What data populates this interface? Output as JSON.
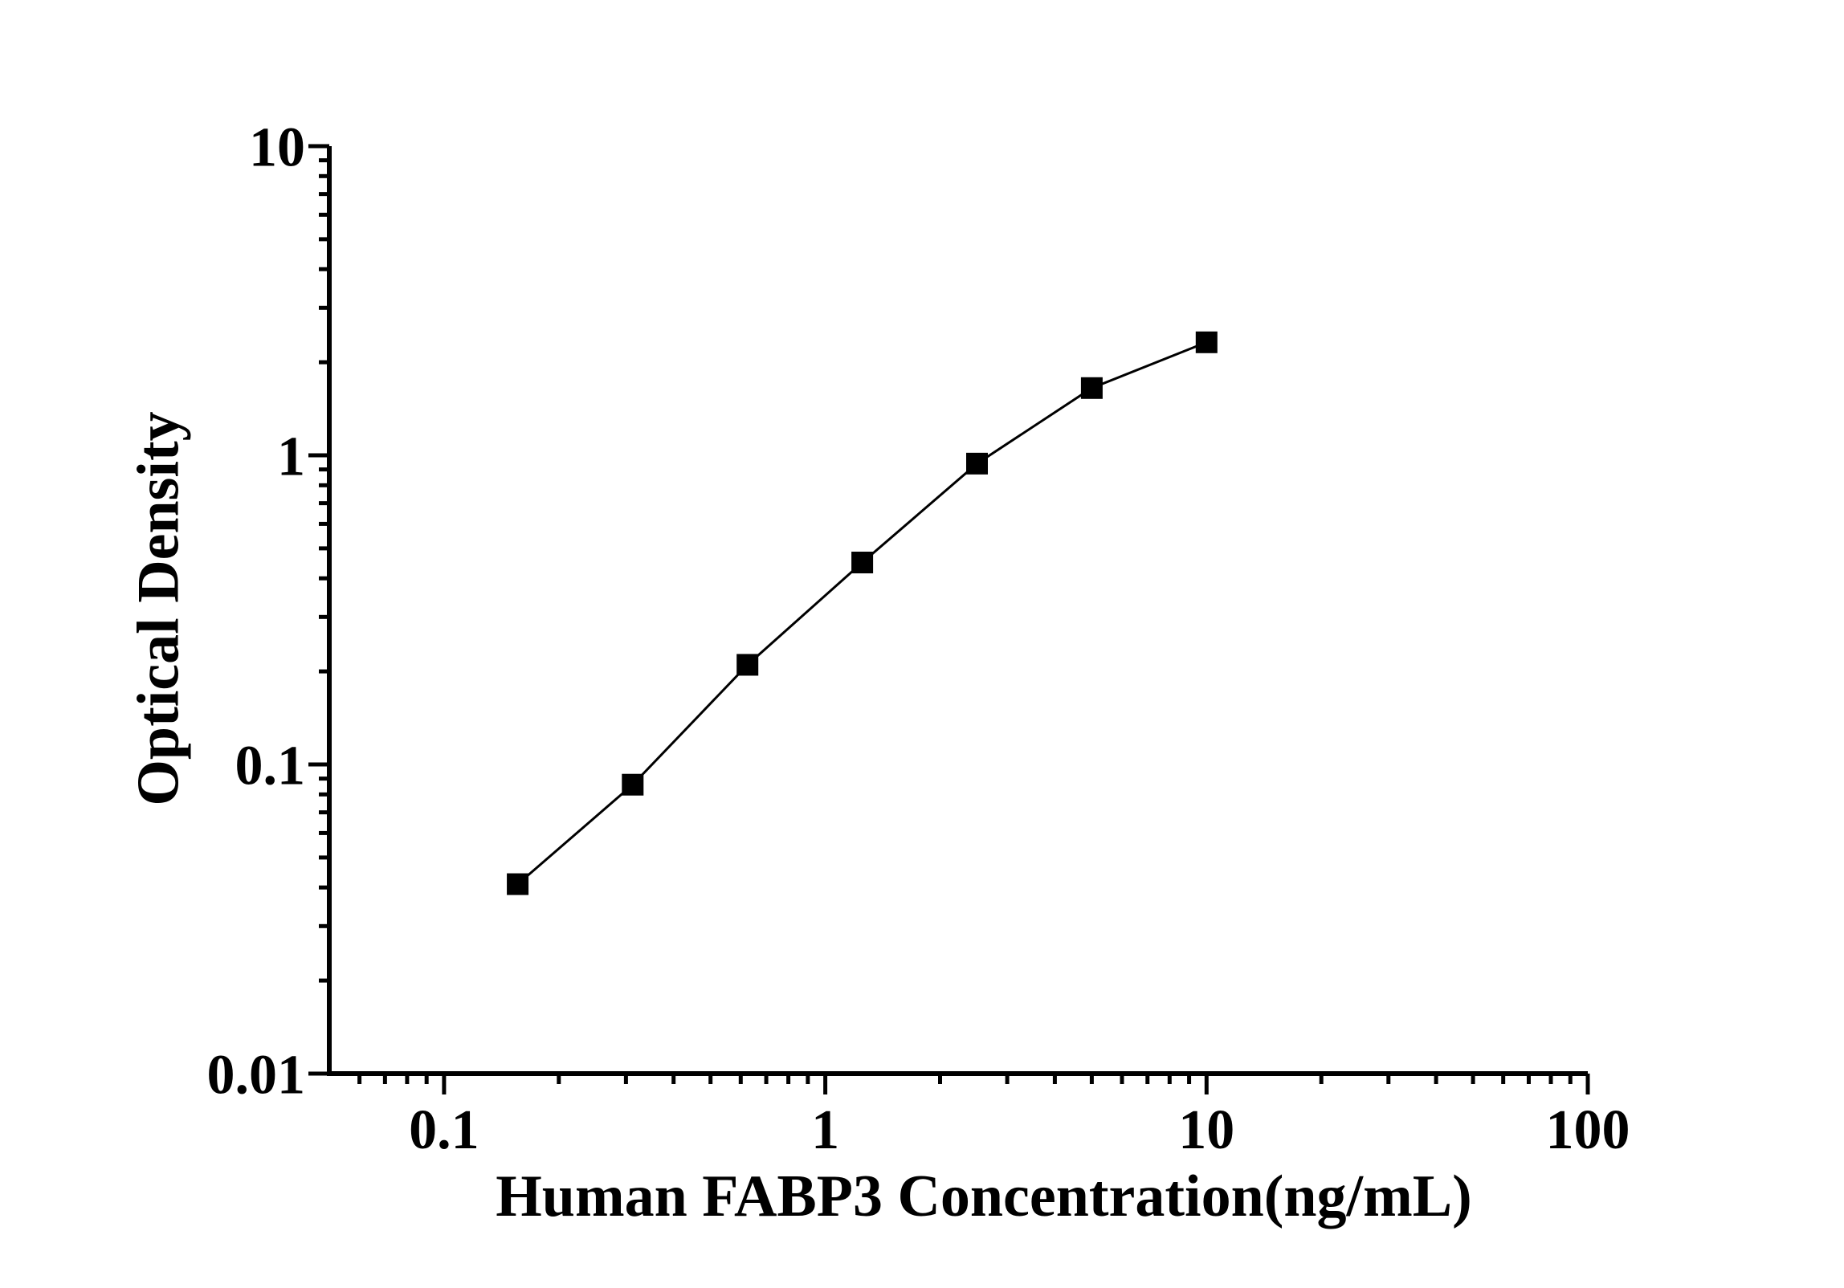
{
  "figure": {
    "background": "#ffffff"
  },
  "chart_data": {
    "type": "line",
    "title": "",
    "xlabel": "Human FABP3 Concentration(ng/mL)",
    "ylabel": "Optical Density",
    "x_scale": "log",
    "y_scale": "log",
    "xlim": [
      0.05,
      100
    ],
    "ylim": [
      0.01,
      10
    ],
    "x_ticks": [
      {
        "value": 0.1,
        "label": "0.1"
      },
      {
        "value": 1,
        "label": "1"
      },
      {
        "value": 10,
        "label": "10"
      },
      {
        "value": 100,
        "label": "100"
      }
    ],
    "y_ticks": [
      {
        "value": 0.01,
        "label": "0.01"
      },
      {
        "value": 0.1,
        "label": "0.1"
      },
      {
        "value": 1,
        "label": "1"
      },
      {
        "value": 10,
        "label": "10"
      }
    ],
    "minor_ticks": true,
    "grid": false,
    "legend": "none",
    "axis_color": "#000000",
    "background_color": "#ffffff",
    "series": [
      {
        "name": "standard-curve",
        "marker": "square",
        "marker_color": "#000000",
        "line_color": "#000000",
        "points": [
          {
            "x": 0.156,
            "y": 0.041
          },
          {
            "x": 0.3125,
            "y": 0.086
          },
          {
            "x": 0.625,
            "y": 0.21
          },
          {
            "x": 1.25,
            "y": 0.45
          },
          {
            "x": 2.5,
            "y": 0.94
          },
          {
            "x": 5,
            "y": 1.65
          },
          {
            "x": 10,
            "y": 2.32
          }
        ]
      }
    ]
  }
}
